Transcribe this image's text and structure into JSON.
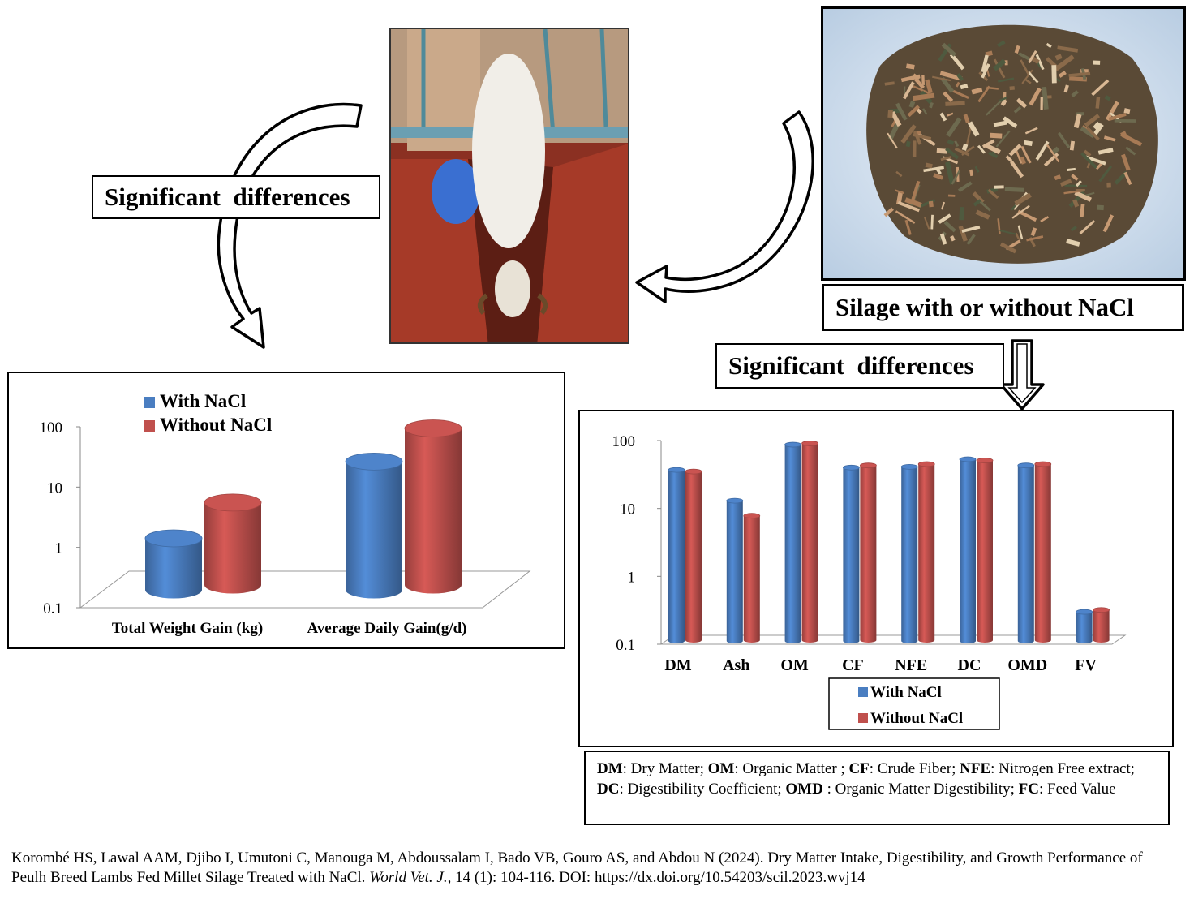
{
  "labels": {
    "significant_left": "Significant  differences",
    "significant_right": "Significant  differences",
    "silage": "Silage with or without NaCl"
  },
  "icons": {
    "arrows": "curved-arrow"
  },
  "colors": {
    "with_nacl": "#4A7EC1",
    "without_nacl": "#C0504D"
  },
  "note": {
    "items": [
      {
        "abbr": "DM",
        "text": ": Dry Matter; "
      },
      {
        "abbr": "OM",
        "text": ": Organic Matter ; "
      },
      {
        "abbr": "CF",
        "text": ": Crude Fiber; "
      },
      {
        "abbr": "NFE",
        "text": ": Nitrogen Free extract; "
      },
      {
        "abbr": "DC",
        "text": ": Digestibility Coefficient; "
      },
      {
        "abbr": "OMD",
        "text": " : Organic Matter Digestibility; "
      },
      {
        "abbr": "FC",
        "text": ": Feed Value"
      }
    ]
  },
  "citation": {
    "before": "Korombé HS, Lawal AAM, Djibo I, Umutoni C, Manouga M, Abdoussalam I, Bado VB, Gouro AS, and Abdou N (2024). Dry Matter Intake, Digestibility, and Growth Performance of Peulh Breed Lambs Fed Millet Silage Treated with NaCl. ",
    "journal": "World Vet. J.,",
    "after": " 14 (1): 104-116. DOI: https://dx.doi.org/10.54203/scil.2023.wvj14"
  },
  "chart_data": [
    {
      "type": "bar",
      "scale": "log",
      "ylim": [
        0.1,
        100
      ],
      "yticks": [
        "0.1",
        "1",
        "10",
        "100"
      ],
      "categories": [
        "Total Weight Gain (kg)",
        "Average Daily Gain(g/d)"
      ],
      "series": [
        {
          "name": "With NaCl",
          "values": [
            1.6,
            30
          ]
        },
        {
          "name": "Without NaCl",
          "values": [
            4.6,
            78
          ]
        }
      ],
      "legend": "top"
    },
    {
      "type": "bar",
      "scale": "log",
      "ylim": [
        0.1,
        100
      ],
      "yticks": [
        "0.1",
        "1",
        "10",
        "100"
      ],
      "categories": [
        "DM",
        "Ash",
        "OM",
        "CF",
        "NFE",
        "DC",
        "OMD",
        "FV"
      ],
      "series": [
        {
          "name": "With NaCl",
          "values": [
            37,
            13,
            87,
            40,
            41,
            53,
            43,
            0.3
          ]
        },
        {
          "name": "Without NaCl",
          "values": [
            35,
            7.8,
            91,
            43,
            45,
            51,
            45,
            0.32
          ]
        }
      ],
      "legend": "bottom"
    }
  ]
}
